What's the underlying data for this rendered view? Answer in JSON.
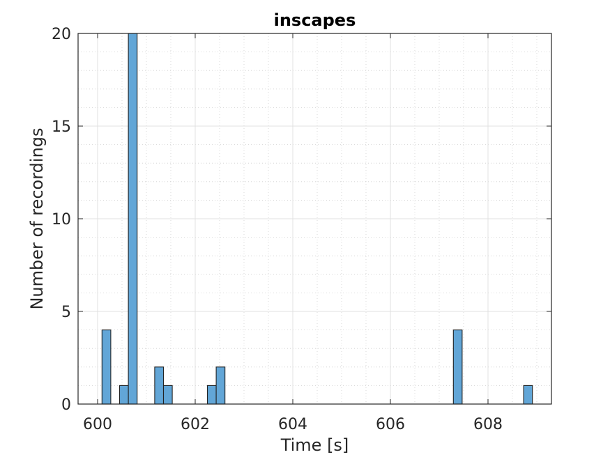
{
  "chart_data": {
    "type": "bar",
    "title": "inscapes",
    "xlabel": "Time [s]",
    "ylabel": "Number of recordings",
    "xlim": [
      599.6,
      609.3
    ],
    "ylim": [
      0,
      20
    ],
    "xticks": [
      600,
      602,
      604,
      606,
      608
    ],
    "yticks": [
      0,
      5,
      10,
      15,
      20
    ],
    "grid": true,
    "minor_grid": true,
    "bar_color": "#62a6d7",
    "bar_edge_color": "#222222",
    "bin_width": 0.18,
    "bins": [
      {
        "x_start": 600.09,
        "x_end": 600.27,
        "count": 4
      },
      {
        "x_start": 600.45,
        "x_end": 600.63,
        "count": 1
      },
      {
        "x_start": 600.63,
        "x_end": 600.81,
        "count": 20
      },
      {
        "x_start": 601.17,
        "x_end": 601.35,
        "count": 2
      },
      {
        "x_start": 601.35,
        "x_end": 601.53,
        "count": 1
      },
      {
        "x_start": 602.25,
        "x_end": 602.43,
        "count": 1
      },
      {
        "x_start": 602.43,
        "x_end": 602.61,
        "count": 2
      },
      {
        "x_start": 607.29,
        "x_end": 607.47,
        "count": 4
      },
      {
        "x_start": 608.73,
        "x_end": 608.91,
        "count": 1
      }
    ]
  }
}
